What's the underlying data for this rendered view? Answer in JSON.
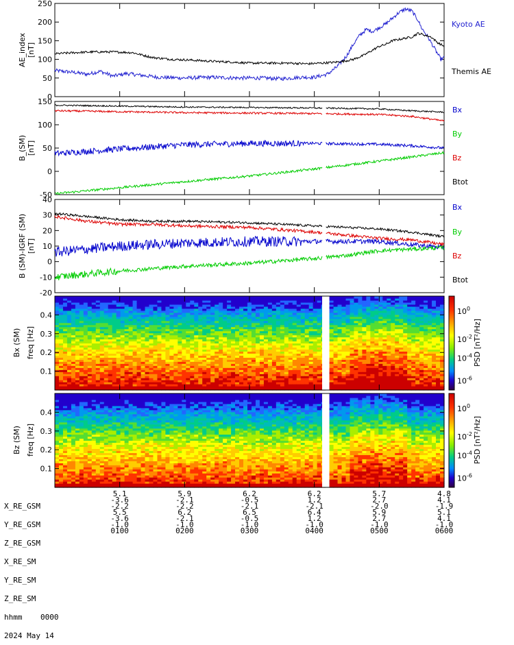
{
  "colors": {
    "kyoto": "#2020d0",
    "themis": "#000000",
    "bx": "#0000cc",
    "by": "#00cc00",
    "bz": "#dd0000",
    "btot": "#000000"
  },
  "chart_data": [
    {
      "type": "line",
      "ylabel": "AE_index [nT]",
      "ylim": [
        0,
        250
      ],
      "yticks": [
        0,
        50,
        100,
        150,
        200,
        250
      ],
      "xlim": [
        0,
        6
      ],
      "series": [
        {
          "name": "Kyoto AE",
          "color": "#2020d0",
          "x": [
            0,
            0.3,
            0.5,
            0.7,
            0.9,
            1.1,
            1.3,
            1.6,
            2.0,
            2.4,
            2.8,
            3.2,
            3.5,
            3.8,
            4.0,
            4.2,
            4.35,
            4.5,
            4.6,
            4.7,
            4.8,
            4.9,
            5.0,
            5.1,
            5.2,
            5.3,
            5.4,
            5.5,
            5.6,
            5.65,
            5.75,
            5.85,
            5.95,
            6.0
          ],
          "y": [
            70,
            65,
            60,
            68,
            55,
            62,
            58,
            52,
            50,
            52,
            50,
            50,
            48,
            52,
            52,
            60,
            80,
            110,
            140,
            165,
            180,
            175,
            185,
            195,
            210,
            225,
            235,
            230,
            205,
            185,
            160,
            130,
            100,
            105
          ]
        },
        {
          "name": "Themis AE",
          "color": "#000000",
          "x": [
            0,
            0.3,
            0.6,
            0.9,
            1.2,
            1.5,
            1.8,
            2.1,
            2.4,
            2.7,
            3.0,
            3.3,
            3.6,
            3.9,
            4.1,
            4.3,
            4.45,
            4.6,
            4.75,
            4.9,
            5.0,
            5.1,
            5.2,
            5.35,
            5.5,
            5.6,
            5.7,
            5.8,
            5.9,
            6.0
          ],
          "y": [
            115,
            118,
            120,
            120,
            118,
            105,
            100,
            98,
            95,
            93,
            90,
            90,
            90,
            88,
            90,
            92,
            95,
            100,
            110,
            125,
            135,
            140,
            150,
            155,
            160,
            170,
            165,
            160,
            145,
            135
          ]
        }
      ]
    },
    {
      "type": "line",
      "ylabel": "B_(SM) [nT]",
      "ylim": [
        -50,
        150
      ],
      "yticks": [
        -50,
        0,
        50,
        100,
        150
      ],
      "xlim": [
        0,
        6
      ],
      "gap": [
        4.12,
        4.18
      ],
      "series": [
        {
          "name": "Bx",
          "color": "#0000cc",
          "x": [
            0,
            1,
            2,
            3,
            4,
            5,
            5.5,
            6
          ],
          "y": [
            38,
            48,
            57,
            60,
            60,
            58,
            55,
            50
          ]
        },
        {
          "name": "By",
          "color": "#00cc00",
          "x": [
            0,
            1,
            2,
            3,
            4,
            5,
            6
          ],
          "y": [
            -48,
            -35,
            -22,
            -10,
            5,
            22,
            40
          ]
        },
        {
          "name": "Bz",
          "color": "#dd0000",
          "x": [
            0,
            1,
            2,
            3,
            4,
            5,
            5.5,
            6
          ],
          "y": [
            130,
            128,
            126,
            125,
            124,
            122,
            118,
            108
          ]
        },
        {
          "name": "Btot",
          "color": "#000000",
          "x": [
            0,
            1,
            2,
            3,
            4,
            5,
            5.5,
            6
          ],
          "y": [
            142,
            140,
            138,
            137,
            136,
            134,
            130,
            127
          ]
        }
      ]
    },
    {
      "type": "line",
      "ylabel": "B (SM)-IGRF (SM) [nT]",
      "ylim": [
        -20,
        40
      ],
      "yticks": [
        -20,
        -10,
        0,
        10,
        20,
        30,
        40
      ],
      "xlim": [
        0,
        6
      ],
      "gap": [
        4.12,
        4.18
      ],
      "series": [
        {
          "name": "Bx",
          "color": "#0000cc",
          "x": [
            0,
            0.5,
            1,
            2,
            3,
            4,
            4.5,
            5,
            5.5,
            6
          ],
          "y": [
            6,
            8,
            10,
            12,
            13,
            13,
            13,
            13,
            11,
            9
          ]
        },
        {
          "name": "By",
          "color": "#00cc00",
          "x": [
            0,
            0.5,
            1,
            2,
            3,
            4,
            4.5,
            5,
            5.5,
            6
          ],
          "y": [
            -10,
            -8,
            -6,
            -3,
            -1,
            2,
            4,
            7,
            8,
            9
          ]
        },
        {
          "name": "Bz",
          "color": "#dd0000",
          "x": [
            0,
            0.5,
            1,
            1.5,
            2,
            3,
            4,
            4.5,
            5,
            5.5,
            6
          ],
          "y": [
            29,
            26,
            24,
            24,
            23,
            22,
            19,
            17,
            15,
            14,
            11
          ]
        },
        {
          "name": "Btot",
          "color": "#000000",
          "x": [
            0,
            0.5,
            1,
            1.5,
            2,
            3,
            4,
            4.5,
            5,
            5.5,
            6
          ],
          "y": [
            31,
            29,
            27,
            26,
            26,
            25,
            23,
            22,
            21,
            19,
            16
          ]
        }
      ]
    },
    {
      "type": "heatmap",
      "ylabel": "Bx (SM) freq [Hz]",
      "zlabel": "PSD [nT²/Hz]",
      "ylim": [
        0,
        0.5
      ],
      "yticks": [
        0.1,
        0.2,
        0.3,
        0.4
      ],
      "colorbar_ticks": [
        "10^0",
        "10^-2",
        "10^-4",
        "10^-6"
      ]
    },
    {
      "type": "heatmap",
      "ylabel": "Bz (SM) freq [Hz]",
      "zlabel": "PSD [nT²/Hz]",
      "ylim": [
        0,
        0.5
      ],
      "yticks": [
        0.1,
        0.2,
        0.3,
        0.4
      ],
      "colorbar_ticks": [
        "10^0",
        "10^-2",
        "10^-4",
        "10^-6"
      ]
    }
  ],
  "panel_labels": {
    "p1": [
      "AE_index",
      "[nT]"
    ],
    "p2": [
      "B_(SM)",
      "[nT]"
    ],
    "p3": [
      "B (SM)-IGRF (SM)",
      "[nT]"
    ],
    "p4": [
      "Bx (SM)",
      "freq [Hz]"
    ],
    "p5": [
      "Bz (SM)",
      "freq [Hz]"
    ],
    "cb": "PSD [nT²/Hz]"
  },
  "ephemeris": {
    "labels": [
      "X_RE_GSM",
      "Y_RE_GSM",
      "Z_RE_GSM",
      "X_RE_SM",
      "Y_RE_SM",
      "Z_RE_SM",
      "hhmm",
      "2024 May 14"
    ],
    "first_hhmm": "0000",
    "columns": [
      {
        "vals": [
          "5.1",
          "-3.6",
          "-2.2",
          "5.5",
          "-3.6",
          "-1.0"
        ],
        "hhmm": "0100"
      },
      {
        "vals": [
          "5.9",
          "-2.1",
          "-2.2",
          "6.2",
          "-2.1",
          "-1.0"
        ],
        "hhmm": "0200"
      },
      {
        "vals": [
          "6.2",
          "-0.5",
          "-2.1",
          "6.5",
          "-0.5",
          "-1.0"
        ],
        "hhmm": "0300"
      },
      {
        "vals": [
          "6.2",
          "1.2",
          "-2.1",
          "6.4",
          "1.2",
          "-1.0"
        ],
        "hhmm": "0400"
      },
      {
        "vals": [
          "5.7",
          "2.7",
          "-2.0",
          "5.9",
          "2.7",
          "-1.0"
        ],
        "hhmm": "0500"
      },
      {
        "vals": [
          "4.8",
          "4.1",
          "-1.9",
          "5.1",
          "4.1",
          "-1.0"
        ],
        "hhmm": "0600"
      }
    ]
  }
}
